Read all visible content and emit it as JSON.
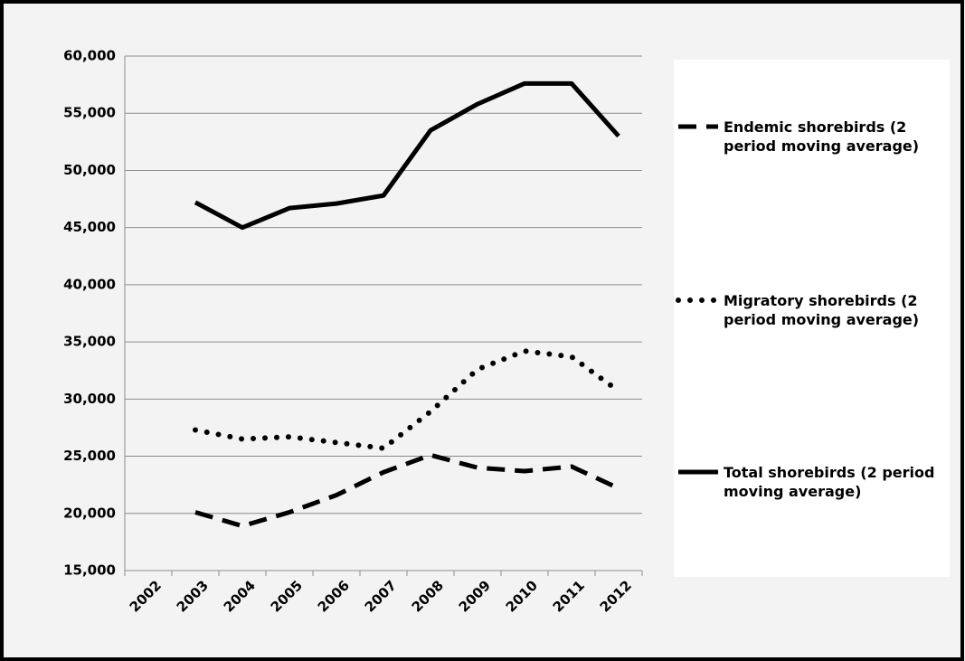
{
  "chart_data": {
    "type": "line",
    "categories": [
      "2002",
      "2003",
      "2004",
      "2005",
      "2006",
      "2007",
      "2008",
      "2009",
      "2010",
      "2011",
      "2012"
    ],
    "series": [
      {
        "name": "Endemic shorebirds (2 period moving average)",
        "color": "#000000",
        "dash": "dashed",
        "values": [
          null,
          20100,
          18900,
          20100,
          21600,
          23600,
          25100,
          24000,
          23700,
          24100,
          22200
        ]
      },
      {
        "name": "Migratory shorebirds (2 period moving average)",
        "color": "#000000",
        "dash": "dotted",
        "values": [
          null,
          27300,
          26500,
          26700,
          26200,
          25700,
          28900,
          32600,
          34200,
          33700,
          30700
        ]
      },
      {
        "name": "Total shorebirds (2 period moving average)",
        "color": "#000000",
        "dash": "solid",
        "values": [
          null,
          47200,
          45000,
          46700,
          47100,
          47800,
          53500,
          55800,
          57600,
          57600,
          53000
        ]
      }
    ],
    "ylim": [
      15000,
      60000
    ],
    "yticks": [
      {
        "value": 15000,
        "label": "15,000"
      },
      {
        "value": 20000,
        "label": "20,000"
      },
      {
        "value": 25000,
        "label": "25,000"
      },
      {
        "value": 30000,
        "label": "30,000"
      },
      {
        "value": 35000,
        "label": "35,000"
      },
      {
        "value": 40000,
        "label": "40,000"
      },
      {
        "value": 45000,
        "label": "45,000"
      },
      {
        "value": 50000,
        "label": "50,000"
      },
      {
        "value": 55000,
        "label": "55,000"
      },
      {
        "value": 60000,
        "label": "60,000"
      }
    ],
    "grid": true,
    "legend": "right"
  }
}
